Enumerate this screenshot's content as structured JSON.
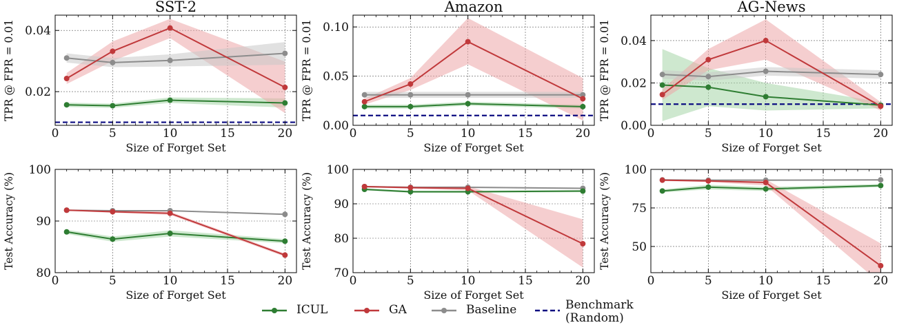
{
  "legend": {
    "icul": "ICUL",
    "ga": "GA",
    "baseline": "Baseline",
    "benchmark": "Benchmark\n(Random)"
  },
  "colors": {
    "icul": "#2e7d32",
    "ga": "#c0393b",
    "baseline": "#8c8c8c",
    "benchmark": "#0b0b80",
    "icul_band": "#a5d6a7",
    "ga_band": "#eda5a7",
    "baseline_band": "#c8c8c8"
  },
  "chart_data": [
    {
      "type": "line",
      "title": "SST-2",
      "xlabel": "Size of Forget Set",
      "ylabel": "TPR @ FPR = 0.01",
      "xlim": [
        0,
        21
      ],
      "ylim": [
        0.009,
        0.045
      ],
      "xticks": [
        0,
        5,
        10,
        15,
        20
      ],
      "yticks": [
        0.02,
        0.04
      ],
      "ytick_labels": [
        "0.02",
        "0.04"
      ],
      "x": [
        1,
        5,
        10,
        20
      ],
      "series": [
        {
          "name": "ICUL",
          "values": [
            0.0157,
            0.0154,
            0.0172,
            0.0163
          ],
          "lower": [
            0.015,
            0.0147,
            0.0163,
            0.0148
          ],
          "upper": [
            0.0164,
            0.0161,
            0.0181,
            0.0178
          ]
        },
        {
          "name": "GA",
          "values": [
            0.0243,
            0.0332,
            0.0408,
            0.0214
          ],
          "lower": [
            0.0225,
            0.03,
            0.0375,
            0.013
          ],
          "upper": [
            0.0261,
            0.0364,
            0.0438,
            0.0298
          ]
        },
        {
          "name": "Baseline",
          "values": [
            0.031,
            0.0295,
            0.0302,
            0.0325
          ],
          "lower": [
            0.0295,
            0.028,
            0.0282,
            0.0288
          ],
          "upper": [
            0.0325,
            0.031,
            0.0322,
            0.0362
          ]
        }
      ],
      "benchmark": 0.01
    },
    {
      "type": "line",
      "title": "Amazon",
      "xlabel": "Size of Forget Set",
      "ylabel": "TPR @ FPR = 0.01",
      "xlim": [
        0,
        21
      ],
      "ylim": [
        0,
        0.112
      ],
      "xticks": [
        0,
        5,
        10,
        15,
        20
      ],
      "yticks": [
        0,
        0.05,
        0.1
      ],
      "ytick_labels": [
        "0.00",
        "0.05",
        "0.10"
      ],
      "x": [
        1,
        5,
        10,
        20
      ],
      "series": [
        {
          "name": "ICUL",
          "values": [
            0.019,
            0.019,
            0.022,
            0.019
          ],
          "lower": [
            0.017,
            0.017,
            0.02,
            0.017
          ],
          "upper": [
            0.021,
            0.021,
            0.024,
            0.021
          ]
        },
        {
          "name": "GA",
          "values": [
            0.024,
            0.042,
            0.085,
            0.027
          ],
          "lower": [
            0.021,
            0.036,
            0.062,
            0.005
          ],
          "upper": [
            0.027,
            0.048,
            0.109,
            0.048
          ]
        },
        {
          "name": "Baseline",
          "values": [
            0.031,
            0.031,
            0.031,
            0.031
          ],
          "lower": [
            0.028,
            0.028,
            0.028,
            0.028
          ],
          "upper": [
            0.034,
            0.034,
            0.034,
            0.034
          ]
        }
      ],
      "benchmark": 0.01
    },
    {
      "type": "line",
      "title": "AG-News",
      "xlabel": "Size of Forget Set",
      "ylabel": "TPR @ FPR = 0.01",
      "xlim": [
        0,
        21
      ],
      "ylim": [
        0,
        0.052
      ],
      "xticks": [
        0,
        5,
        10,
        15,
        20
      ],
      "yticks": [
        0,
        0.02,
        0.04
      ],
      "ytick_labels": [
        "0.00",
        "0.02",
        "0.04"
      ],
      "x": [
        1,
        5,
        10,
        20
      ],
      "series": [
        {
          "name": "ICUL",
          "values": [
            0.019,
            0.018,
            0.0135,
            0.0095
          ],
          "lower": [
            0.002,
            0.009,
            0.007,
            0.008
          ],
          "upper": [
            0.036,
            0.027,
            0.02,
            0.011
          ]
        },
        {
          "name": "GA",
          "values": [
            0.0145,
            0.031,
            0.04,
            0.009
          ],
          "lower": [
            0.012,
            0.026,
            0.031,
            0.007
          ],
          "upper": [
            0.017,
            0.036,
            0.05,
            0.011
          ]
        },
        {
          "name": "Baseline",
          "values": [
            0.024,
            0.023,
            0.0255,
            0.024
          ],
          "lower": [
            0.022,
            0.021,
            0.0235,
            0.022
          ],
          "upper": [
            0.026,
            0.025,
            0.0275,
            0.026
          ]
        }
      ],
      "benchmark": 0.01
    },
    {
      "type": "line",
      "title": "",
      "xlabel": "Size of Forget Set",
      "ylabel": "Test Accuracy (%)",
      "xlim": [
        0,
        21
      ],
      "ylim": [
        80,
        100
      ],
      "xticks": [
        0,
        5,
        10,
        15,
        20
      ],
      "yticks": [
        80,
        90,
        100
      ],
      "ytick_labels": [
        "80",
        "90",
        "100"
      ],
      "x": [
        1,
        5,
        10,
        20
      ],
      "series": [
        {
          "name": "ICUL",
          "values": [
            87.9,
            86.5,
            87.6,
            86.1
          ],
          "lower": [
            87.5,
            86.0,
            87.0,
            85.7
          ],
          "upper": [
            88.3,
            87.0,
            88.2,
            86.5
          ]
        },
        {
          "name": "GA",
          "values": [
            92.1,
            91.8,
            91.5,
            83.4
          ],
          "lower": [
            92.0,
            91.6,
            91.2,
            83.1
          ],
          "upper": [
            92.2,
            92.0,
            91.8,
            83.7
          ]
        },
        {
          "name": "Baseline",
          "values": [
            92.1,
            92.0,
            92.0,
            91.3
          ],
          "lower": [
            92.0,
            91.9,
            91.9,
            91.2
          ],
          "upper": [
            92.2,
            92.1,
            92.1,
            91.4
          ]
        }
      ]
    },
    {
      "type": "line",
      "title": "",
      "xlabel": "Size of Forget Set",
      "ylabel": "Test Accuracy (%)",
      "xlim": [
        0,
        21
      ],
      "ylim": [
        70,
        100
      ],
      "xticks": [
        0,
        5,
        10,
        15,
        20
      ],
      "yticks": [
        70,
        80,
        90,
        100
      ],
      "ytick_labels": [
        "70",
        "80",
        "90",
        "100"
      ],
      "x": [
        1,
        5,
        10,
        20
      ],
      "series": [
        {
          "name": "ICUL",
          "values": [
            94.2,
            93.5,
            93.5,
            93.7
          ],
          "lower": [
            93.9,
            93.2,
            93.2,
            93.4
          ],
          "upper": [
            94.5,
            93.8,
            93.8,
            94.0
          ]
        },
        {
          "name": "GA",
          "values": [
            95.0,
            94.7,
            94.5,
            78.4
          ],
          "lower": [
            94.8,
            94.4,
            93.9,
            71.5
          ],
          "upper": [
            95.2,
            95.0,
            95.1,
            85.5
          ]
        },
        {
          "name": "Baseline",
          "values": [
            95.0,
            94.8,
            94.8,
            94.5
          ],
          "lower": [
            94.8,
            94.6,
            94.6,
            94.3
          ],
          "upper": [
            95.2,
            95.0,
            95.0,
            94.7
          ]
        }
      ]
    },
    {
      "type": "line",
      "title": "",
      "xlabel": "Size of Forget Set",
      "ylabel": "Test Accuracy (%)",
      "xlim": [
        0,
        21
      ],
      "ylim": [
        33,
        100
      ],
      "xticks": [
        0,
        5,
        10,
        15,
        20
      ],
      "yticks": [
        50,
        75,
        100
      ],
      "ytick_labels": [
        "50",
        "75",
        "100"
      ],
      "x": [
        1,
        5,
        10,
        20
      ],
      "series": [
        {
          "name": "ICUL",
          "values": [
            86.0,
            88.5,
            87.3,
            89.5
          ],
          "lower": [
            85.0,
            87.0,
            86.0,
            88.5
          ],
          "upper": [
            87.0,
            90.0,
            88.6,
            90.5
          ]
        },
        {
          "name": "GA",
          "values": [
            93.0,
            92.5,
            91.5,
            37.5
          ],
          "lower": [
            92.5,
            91.8,
            89.5,
            26.0
          ],
          "upper": [
            93.5,
            93.2,
            93.5,
            52.0
          ]
        },
        {
          "name": "Baseline",
          "values": [
            93.2,
            93.0,
            93.0,
            93.2
          ],
          "lower": [
            92.8,
            92.6,
            92.6,
            92.8
          ],
          "upper": [
            93.6,
            93.4,
            93.4,
            93.6
          ]
        }
      ]
    }
  ]
}
